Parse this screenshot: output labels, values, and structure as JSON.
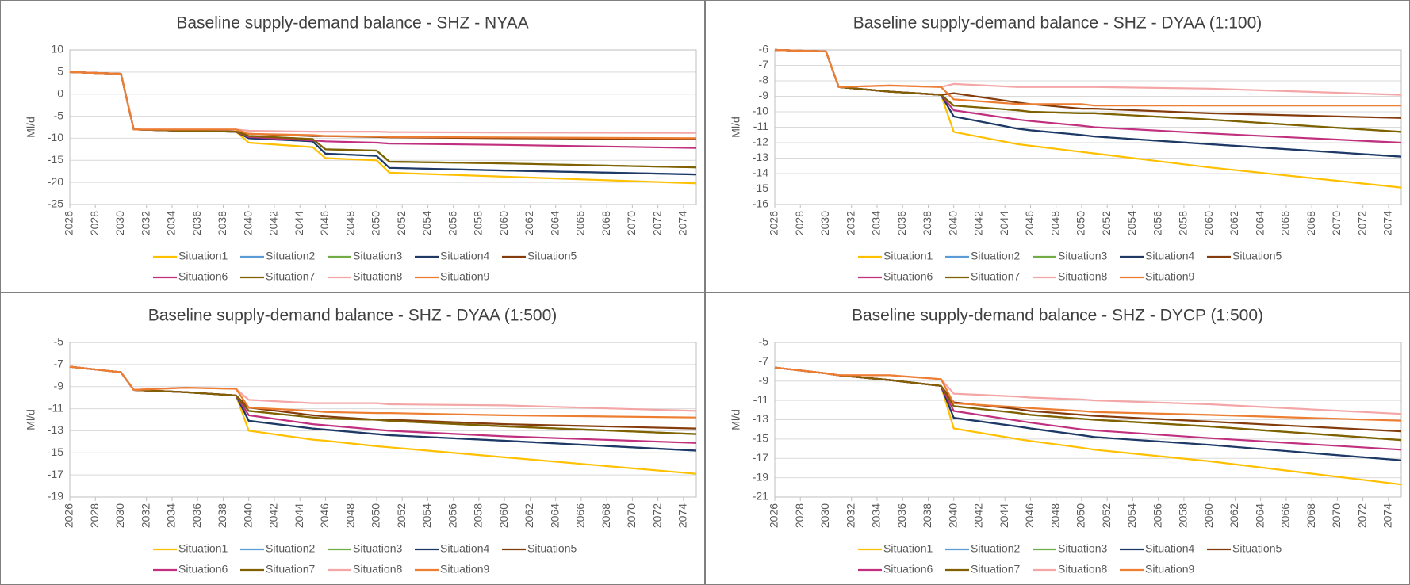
{
  "chart_data": [
    {
      "type": "line",
      "title": "Baseline supply-demand balance - SHZ - NYAA",
      "y_label": "Ml/d",
      "x": [
        2026,
        2030,
        2031,
        2035,
        2039,
        2040,
        2045,
        2046,
        2050,
        2051,
        2060,
        2075
      ],
      "xlim": [
        2026,
        2075
      ],
      "xticks": [
        2026,
        2028,
        2030,
        2032,
        2034,
        2036,
        2038,
        2040,
        2042,
        2044,
        2046,
        2048,
        2050,
        2052,
        2054,
        2056,
        2058,
        2060,
        2062,
        2064,
        2066,
        2068,
        2070,
        2072,
        2074
      ],
      "ylim": [
        -25,
        10
      ],
      "yticks": [
        -25,
        -20,
        -15,
        -10,
        -5,
        0,
        5,
        10
      ],
      "grid": true,
      "series": [
        {
          "name": "Situation1",
          "color": "#ffc000",
          "values": [
            5,
            4.6,
            -8,
            -8.3,
            -8.5,
            -11,
            -12,
            -14.5,
            -15,
            -17.8,
            -18.7,
            -20.2
          ]
        },
        {
          "name": "Situation2",
          "color": "#5b9bd5",
          "values": [
            5,
            4.6,
            -8,
            -8.3,
            -8.5,
            -10,
            -10.7,
            -13.5,
            -14,
            -16.7,
            -17.3,
            -18.2
          ]
        },
        {
          "name": "Situation3",
          "color": "#70ad47",
          "values": [
            5,
            4.6,
            -8,
            -8.3,
            -8.5,
            -9.5,
            -10.2,
            -12.5,
            -12.8,
            -15.3,
            -15.7,
            -16.6
          ]
        },
        {
          "name": "Situation4",
          "color": "#1f3864",
          "values": [
            5,
            4.6,
            -8,
            -8.3,
            -8.5,
            -10,
            -10.7,
            -13.5,
            -14,
            -16.7,
            -17.3,
            -18.2
          ]
        },
        {
          "name": "Situation5",
          "color": "#843c0c",
          "values": [
            5,
            4.6,
            -8,
            -8.3,
            -8.5,
            -9,
            -9.5,
            -9.5,
            -9.7,
            -9.8,
            -10,
            -10.2
          ]
        },
        {
          "name": "Situation6",
          "color": "#c0307f",
          "values": [
            5,
            4.6,
            -8,
            -8.3,
            -8.5,
            -9.7,
            -10.5,
            -10.7,
            -11,
            -11.2,
            -11.5,
            -12.2
          ]
        },
        {
          "name": "Situation7",
          "color": "#806000",
          "values": [
            5,
            4.6,
            -8,
            -8.3,
            -8.5,
            -9.5,
            -10.2,
            -12.5,
            -12.8,
            -15.3,
            -15.7,
            -16.6
          ]
        },
        {
          "name": "Situation8",
          "color": "#f4a6a6",
          "values": [
            5,
            4.6,
            -8,
            -8,
            -8,
            -8.3,
            -8.5,
            -8.5,
            -8.5,
            -8.6,
            -8.7,
            -8.8
          ]
        },
        {
          "name": "Situation9",
          "color": "#ed7d31",
          "values": [
            5,
            4.6,
            -8,
            -8,
            -8,
            -9,
            -9.3,
            -9.5,
            -9.6,
            -9.7,
            -9.8,
            -10
          ]
        }
      ]
    },
    {
      "type": "line",
      "title": "Baseline supply-demand balance - SHZ - DYAA (1:100)",
      "y_label": "Ml/d",
      "x": [
        2026,
        2030,
        2031,
        2035,
        2039,
        2040,
        2045,
        2046,
        2050,
        2051,
        2060,
        2075
      ],
      "xlim": [
        2026,
        2075
      ],
      "xticks": [
        2026,
        2028,
        2030,
        2032,
        2034,
        2036,
        2038,
        2040,
        2042,
        2044,
        2046,
        2048,
        2050,
        2052,
        2054,
        2056,
        2058,
        2060,
        2062,
        2064,
        2066,
        2068,
        2070,
        2072,
        2074
      ],
      "ylim": [
        -16,
        -6
      ],
      "yticks": [
        -16,
        -15,
        -14,
        -13,
        -12,
        -11,
        -10,
        -9,
        -8,
        -7,
        -6
      ],
      "grid": true,
      "series": [
        {
          "name": "Situation1",
          "color": "#ffc000",
          "values": [
            -6,
            -6.1,
            -8.4,
            -8.7,
            -8.9,
            -11.3,
            -12.1,
            -12.2,
            -12.6,
            -12.7,
            -13.6,
            -14.9
          ]
        },
        {
          "name": "Situation2",
          "color": "#5b9bd5",
          "values": [
            -6,
            -6.1,
            -8.4,
            -8.7,
            -8.9,
            -10.3,
            -11.1,
            -11.2,
            -11.5,
            -11.6,
            -12.1,
            -12.9
          ]
        },
        {
          "name": "Situation3",
          "color": "#70ad47",
          "values": [
            -6,
            -6.1,
            -8.4,
            -8.7,
            -8.9,
            -9.6,
            -9.9,
            -10,
            -10.1,
            -10.1,
            -10.5,
            -11.3
          ]
        },
        {
          "name": "Situation4",
          "color": "#1f3864",
          "values": [
            -6,
            -6.1,
            -8.4,
            -8.7,
            -8.9,
            -10.3,
            -11.1,
            -11.2,
            -11.5,
            -11.6,
            -12.1,
            -12.9
          ]
        },
        {
          "name": "Situation5",
          "color": "#843c0c",
          "values": [
            -6,
            -6.1,
            -8.4,
            -8.7,
            -8.9,
            -8.8,
            -9.4,
            -9.5,
            -9.8,
            -9.8,
            -10.1,
            -10.4
          ]
        },
        {
          "name": "Situation6",
          "color": "#c0307f",
          "values": [
            -6,
            -6.1,
            -8.4,
            -8.7,
            -8.9,
            -9.9,
            -10.5,
            -10.6,
            -10.9,
            -11,
            -11.4,
            -12
          ]
        },
        {
          "name": "Situation7",
          "color": "#806000",
          "values": [
            -6,
            -6.1,
            -8.4,
            -8.7,
            -8.9,
            -9.6,
            -9.9,
            -10,
            -10.1,
            -10.1,
            -10.5,
            -11.3
          ]
        },
        {
          "name": "Situation8",
          "color": "#f4a6a6",
          "values": [
            -6,
            -6.1,
            -8.4,
            -8.3,
            -8.4,
            -8.2,
            -8.4,
            -8.4,
            -8.4,
            -8.4,
            -8.5,
            -8.9
          ]
        },
        {
          "name": "Situation9",
          "color": "#ed7d31",
          "values": [
            -6,
            -6.1,
            -8.4,
            -8.3,
            -8.4,
            -9.2,
            -9.5,
            -9.5,
            -9.5,
            -9.6,
            -9.6,
            -9.6
          ]
        }
      ]
    },
    {
      "type": "line",
      "title": "Baseline supply-demand balance - SHZ - DYAA (1:500)",
      "y_label": "Ml/d",
      "x": [
        2026,
        2030,
        2031,
        2035,
        2039,
        2040,
        2045,
        2046,
        2050,
        2051,
        2060,
        2075
      ],
      "xlim": [
        2026,
        2075
      ],
      "xticks": [
        2026,
        2028,
        2030,
        2032,
        2034,
        2036,
        2038,
        2040,
        2042,
        2044,
        2046,
        2048,
        2050,
        2052,
        2054,
        2056,
        2058,
        2060,
        2062,
        2064,
        2066,
        2068,
        2070,
        2072,
        2074
      ],
      "ylim": [
        -19,
        -5
      ],
      "yticks": [
        -19,
        -17,
        -15,
        -13,
        -11,
        -9,
        -7,
        -5
      ],
      "grid": true,
      "series": [
        {
          "name": "Situation1",
          "color": "#ffc000",
          "values": [
            -7.2,
            -7.7,
            -9.3,
            -9.5,
            -9.8,
            -13,
            -13.8,
            -13.9,
            -14.4,
            -14.5,
            -15.4,
            -16.9
          ]
        },
        {
          "name": "Situation2",
          "color": "#5b9bd5",
          "values": [
            -7.2,
            -7.7,
            -9.3,
            -9.5,
            -9.8,
            -12.1,
            -12.8,
            -12.9,
            -13.3,
            -13.4,
            -13.9,
            -14.8
          ]
        },
        {
          "name": "Situation3",
          "color": "#70ad47",
          "values": [
            -7.2,
            -7.7,
            -9.3,
            -9.5,
            -9.8,
            -11.2,
            -11.8,
            -11.9,
            -12,
            -12.1,
            -12.6,
            -13.3
          ]
        },
        {
          "name": "Situation4",
          "color": "#1f3864",
          "values": [
            -7.2,
            -7.7,
            -9.3,
            -9.5,
            -9.8,
            -12.1,
            -12.8,
            -12.9,
            -13.3,
            -13.4,
            -13.9,
            -14.8
          ]
        },
        {
          "name": "Situation5",
          "color": "#843c0c",
          "values": [
            -7.2,
            -7.7,
            -9.3,
            -9.5,
            -9.8,
            -10.9,
            -11.6,
            -11.7,
            -12,
            -12,
            -12.4,
            -12.8
          ]
        },
        {
          "name": "Situation6",
          "color": "#c0307f",
          "values": [
            -7.2,
            -7.7,
            -9.3,
            -9.5,
            -9.8,
            -11.6,
            -12.4,
            -12.5,
            -12.9,
            -13,
            -13.5,
            -14.1
          ]
        },
        {
          "name": "Situation7",
          "color": "#806000",
          "values": [
            -7.2,
            -7.7,
            -9.3,
            -9.5,
            -9.8,
            -11.2,
            -11.8,
            -11.9,
            -12,
            -12.1,
            -12.6,
            -13.3
          ]
        },
        {
          "name": "Situation8",
          "color": "#f4a6a6",
          "values": [
            -7.2,
            -7.7,
            -9.3,
            -9.1,
            -9.2,
            -10.2,
            -10.5,
            -10.5,
            -10.5,
            -10.6,
            -10.7,
            -11.2
          ]
        },
        {
          "name": "Situation9",
          "color": "#ed7d31",
          "values": [
            -7.2,
            -7.7,
            -9.3,
            -9.1,
            -9.2,
            -10.9,
            -11.2,
            -11.3,
            -11.4,
            -11.4,
            -11.6,
            -11.8
          ]
        }
      ]
    },
    {
      "type": "line",
      "title": "Baseline supply-demand balance - SHZ - DYCP (1:500)",
      "y_label": "Ml/d",
      "x": [
        2026,
        2030,
        2031,
        2035,
        2039,
        2040,
        2045,
        2046,
        2050,
        2051,
        2060,
        2075
      ],
      "xlim": [
        2026,
        2075
      ],
      "xticks": [
        2026,
        2028,
        2030,
        2032,
        2034,
        2036,
        2038,
        2040,
        2042,
        2044,
        2046,
        2048,
        2050,
        2052,
        2054,
        2056,
        2058,
        2060,
        2062,
        2064,
        2066,
        2068,
        2070,
        2072,
        2074
      ],
      "ylim": [
        -21,
        -5
      ],
      "yticks": [
        -21,
        -19,
        -17,
        -15,
        -13,
        -11,
        -9,
        -7,
        -5
      ],
      "grid": true,
      "series": [
        {
          "name": "Situation1",
          "color": "#ffc000",
          "values": [
            -7.6,
            -8.2,
            -8.4,
            -8.9,
            -9.5,
            -13.9,
            -15,
            -15.2,
            -15.9,
            -16.1,
            -17.3,
            -19.7
          ]
        },
        {
          "name": "Situation2",
          "color": "#5b9bd5",
          "values": [
            -7.6,
            -8.2,
            -8.4,
            -8.9,
            -9.5,
            -12.8,
            -13.7,
            -13.9,
            -14.6,
            -14.8,
            -15.6,
            -17.2
          ]
        },
        {
          "name": "Situation3",
          "color": "#70ad47",
          "values": [
            -7.6,
            -8.2,
            -8.4,
            -8.9,
            -9.5,
            -11.6,
            -12.3,
            -12.5,
            -12.9,
            -13,
            -13.7,
            -15.1
          ]
        },
        {
          "name": "Situation4",
          "color": "#1f3864",
          "values": [
            -7.6,
            -8.2,
            -8.4,
            -8.9,
            -9.5,
            -12.8,
            -13.7,
            -13.9,
            -14.6,
            -14.8,
            -15.6,
            -17.2
          ]
        },
        {
          "name": "Situation5",
          "color": "#843c0c",
          "values": [
            -7.6,
            -8.2,
            -8.4,
            -8.9,
            -9.5,
            -11.2,
            -11.9,
            -12.1,
            -12.5,
            -12.6,
            -13.2,
            -14.2
          ]
        },
        {
          "name": "Situation6",
          "color": "#c0307f",
          "values": [
            -7.6,
            -8.2,
            -8.4,
            -8.9,
            -9.5,
            -12.1,
            -13.1,
            -13.3,
            -14,
            -14.1,
            -14.9,
            -16.1
          ]
        },
        {
          "name": "Situation7",
          "color": "#806000",
          "values": [
            -7.6,
            -8.2,
            -8.4,
            -8.9,
            -9.5,
            -11.6,
            -12.3,
            -12.5,
            -12.9,
            -13,
            -13.7,
            -15.1
          ]
        },
        {
          "name": "Situation8",
          "color": "#f4a6a6",
          "values": [
            -7.6,
            -8.2,
            -8.4,
            -8.4,
            -8.8,
            -10.3,
            -10.6,
            -10.7,
            -10.9,
            -11,
            -11.4,
            -12.4
          ]
        },
        {
          "name": "Situation9",
          "color": "#ed7d31",
          "values": [
            -7.6,
            -8.2,
            -8.4,
            -8.4,
            -8.8,
            -11.3,
            -11.7,
            -11.8,
            -12.1,
            -12.2,
            -12.5,
            -13.1
          ]
        }
      ]
    }
  ]
}
